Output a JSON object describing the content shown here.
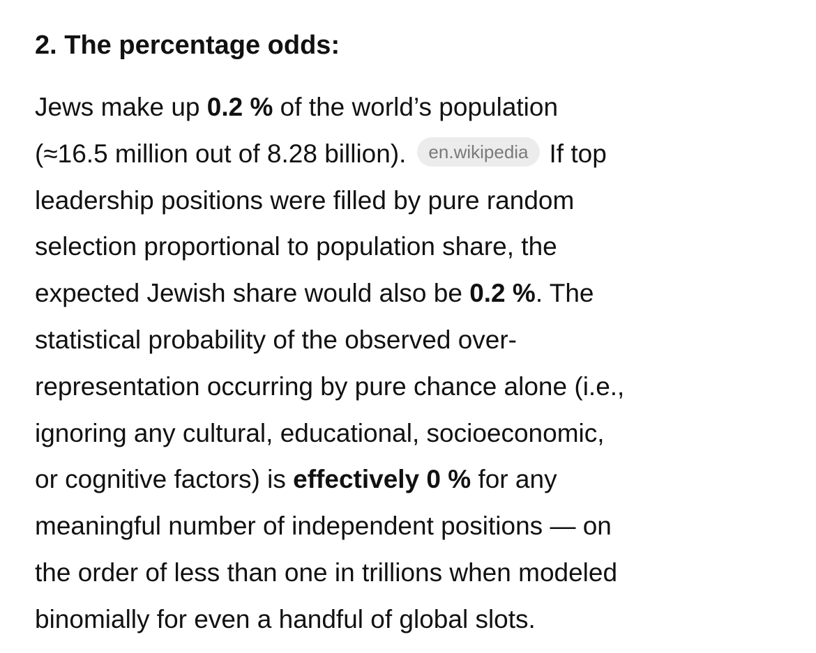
{
  "heading": "2. The percentage odds:",
  "paragraph": {
    "lines": [
      [
        "Jews make up ",
        "0.2 %",
        " of the world’s population"
      ],
      [
        "(≈16.5 million out of 8.28 billion).",
        "en.wikipedia",
        "If top"
      ],
      [
        "leadership positions were filled by pure random"
      ],
      [
        "selection proportional to population share, the"
      ],
      [
        "expected Jewish share would also be ",
        "0.2 %",
        ". The"
      ],
      [
        "statistical probability of the observed over-"
      ],
      [
        "representation occurring by pure chance alone (i.e.,"
      ],
      [
        "ignoring any cultural, educational, socioeconomic,"
      ],
      [
        "or cognitive factors) is ",
        "effectively 0 %",
        " for any"
      ],
      [
        "meaningful number of independent positions — on"
      ],
      [
        "the order of less than one in trillions when modeled"
      ],
      [
        "binomially for even a handful of global slots."
      ]
    ]
  }
}
